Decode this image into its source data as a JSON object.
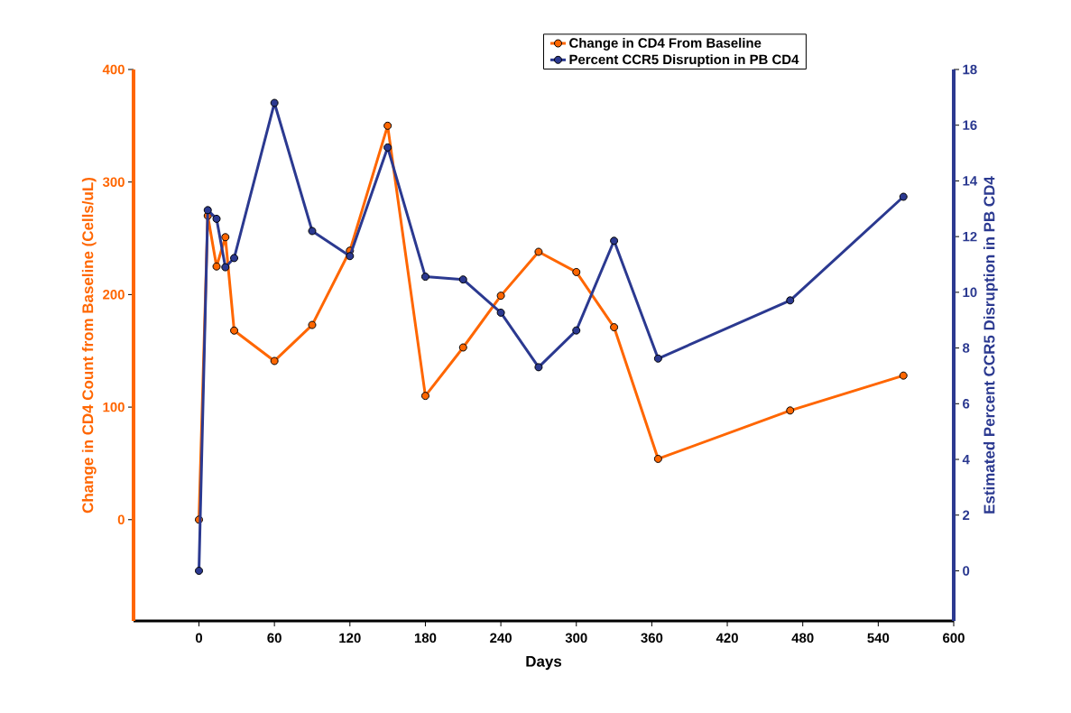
{
  "chart_data": {
    "type": "line",
    "xlabel": "Days",
    "ylabel": "Change in CD4 Count from Baseline (Cells/uL)",
    "y2label": "Estimated Percent CCR5 Disruption in PB CD4",
    "x": [
      0,
      7,
      14,
      21,
      28,
      60,
      90,
      120,
      150,
      180,
      210,
      240,
      270,
      300,
      330,
      365,
      470,
      560
    ],
    "series": [
      {
        "name": "Change in CD4 From Baseline",
        "color": "#ff6600",
        "values": [
          0,
          270,
          225,
          251,
          168,
          141,
          173,
          239,
          350,
          110,
          153,
          199,
          238,
          220,
          171,
          54,
          97,
          128
        ]
      },
      {
        "name": "Percent CCR5 Disruption in PB CD4",
        "color": "#2b3990",
        "axis": "y2",
        "values": [
          0,
          12.95,
          12.64,
          10.9,
          11.23,
          16.8,
          12.2,
          11.3,
          15.2,
          10.56,
          10.46,
          9.27,
          7.31,
          8.63,
          11.85,
          7.62,
          9.71,
          13.43
        ]
      }
    ],
    "xlim": [
      -52,
      600
    ],
    "xticks": [
      0,
      60,
      120,
      180,
      240,
      300,
      360,
      420,
      480,
      540,
      600
    ],
    "ylim": [
      -90,
      400
    ],
    "yticks": [
      0,
      100,
      200,
      300,
      400
    ],
    "y2lim": [
      -1.8,
      18
    ],
    "y2ticks": [
      0,
      2,
      4,
      6,
      8,
      10,
      12,
      14,
      16,
      18
    ],
    "marker": "circle",
    "line_style": "solid",
    "legend": "top",
    "grid": false
  }
}
